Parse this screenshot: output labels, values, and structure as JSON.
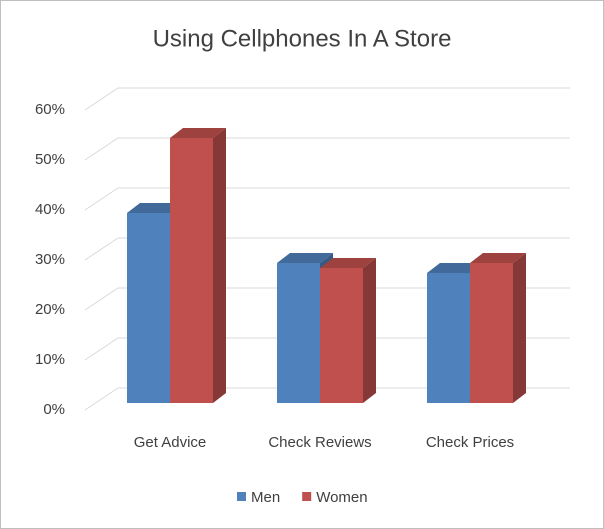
{
  "chart_data": {
    "type": "bar3d",
    "title": "Using Cellphones In A Store",
    "categories": [
      "Get Advice",
      "Check Reviews",
      "Check Prices"
    ],
    "series": [
      {
        "name": "Men",
        "color": "#4f81bd",
        "values": [
          38,
          28,
          26
        ]
      },
      {
        "name": "Women",
        "color": "#c0504d",
        "values": [
          53,
          27,
          28
        ]
      }
    ],
    "ylim": [
      0,
      60
    ],
    "yticks": [
      {
        "value": 0,
        "label": "0%"
      },
      {
        "value": 10,
        "label": "10%"
      },
      {
        "value": 20,
        "label": "20%"
      },
      {
        "value": 30,
        "label": "30%"
      },
      {
        "value": 40,
        "label": "40%"
      },
      {
        "value": 50,
        "label": "50%"
      },
      {
        "value": 60,
        "label": "60%"
      }
    ],
    "grid": true,
    "legend": "bottom"
  }
}
